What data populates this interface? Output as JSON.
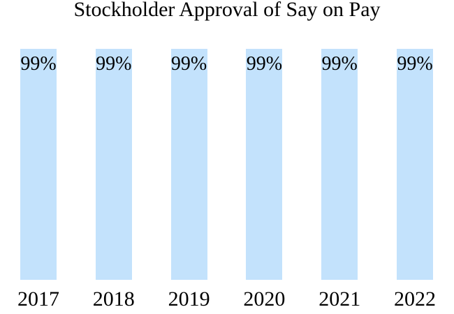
{
  "title": "Stockholder Approval of Say on Pay",
  "colors": {
    "background": "#ffffff",
    "bar_fill": "#c3e2fc",
    "text": "#000000"
  },
  "chart_data": {
    "type": "bar",
    "title": "Stockholder Approval of Say on Pay",
    "categories": [
      "2017",
      "2018",
      "2019",
      "2020",
      "2021",
      "2022"
    ],
    "values": [
      99,
      99,
      99,
      99,
      99,
      99
    ],
    "value_labels": [
      "99%",
      "99%",
      "99%",
      "99%",
      "99%",
      "99%"
    ],
    "xlabel": "",
    "ylabel": "",
    "ylim": [
      0,
      100
    ],
    "grid": false,
    "legend": false,
    "axes_visible": false,
    "value_label_position": "inside-top",
    "legend_position": "none"
  }
}
